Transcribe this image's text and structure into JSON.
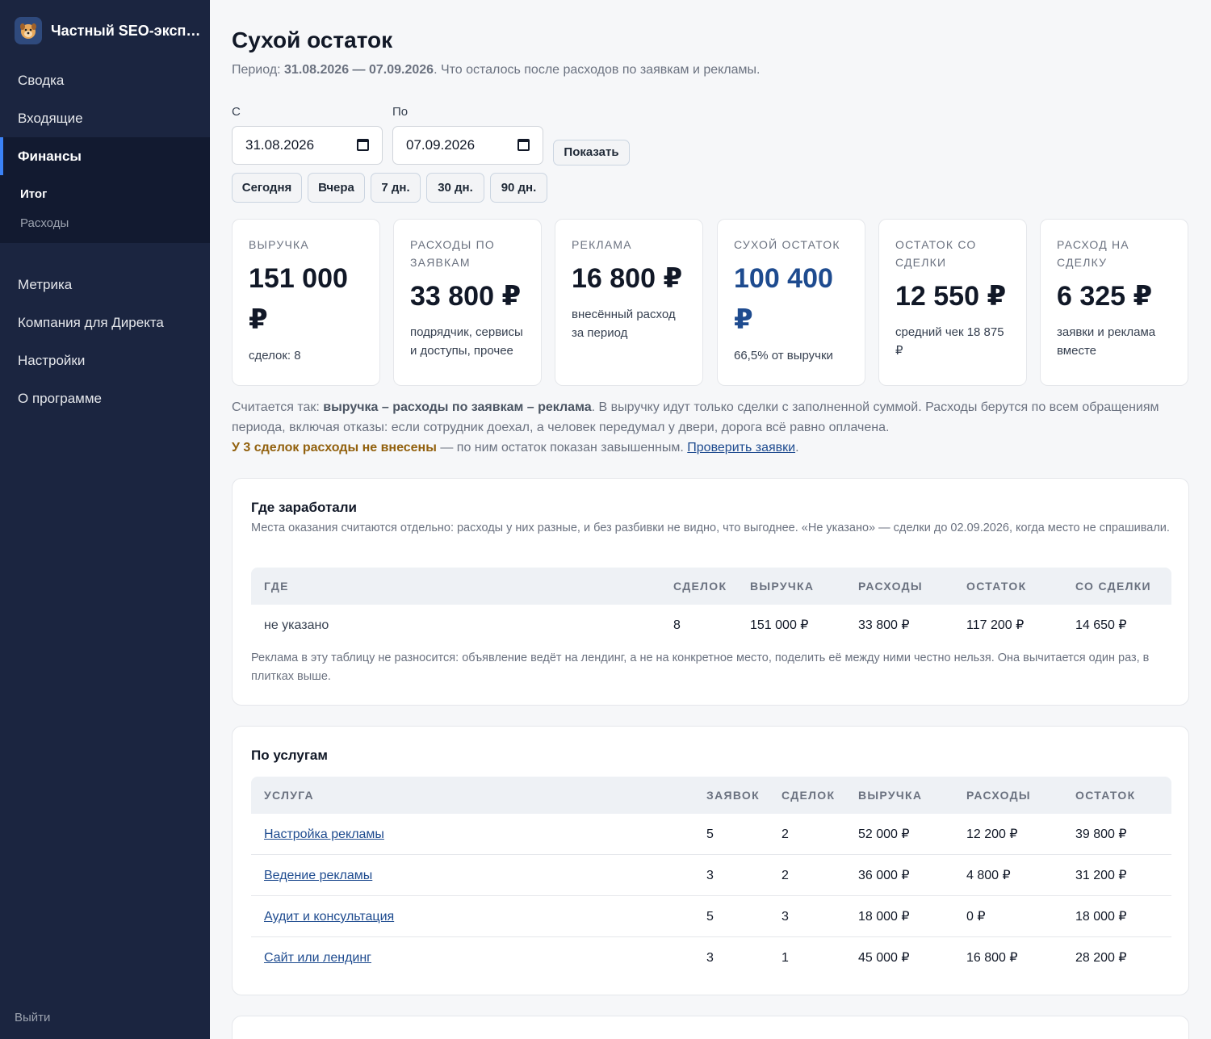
{
  "app": {
    "title": "Частный SEO-эксперт"
  },
  "sidebar": {
    "items": [
      {
        "label": "Сводка"
      },
      {
        "label": "Входящие"
      },
      {
        "label": "Финансы"
      }
    ],
    "subitems": [
      {
        "label": "Итог"
      },
      {
        "label": "Расходы"
      }
    ],
    "items2": [
      {
        "label": "Метрика"
      },
      {
        "label": "Компания для Директа"
      },
      {
        "label": "Настройки"
      },
      {
        "label": "О программе"
      }
    ],
    "logout": "Выйти"
  },
  "page": {
    "title": "Сухой остаток",
    "subtitle_prefix": "Период: ",
    "subtitle_period": "31.08.2026 — 07.09.2026",
    "subtitle_suffix": ". Что осталось после расходов по заявкам и рекламы."
  },
  "filters": {
    "from_label": "С",
    "from_value": "31.08.2026",
    "to_label": "По",
    "to_value": "07.09.2026",
    "show_button": "Показать",
    "presets": [
      "Сегодня",
      "Вчера",
      "7 дн.",
      "30 дн.",
      "90 дн."
    ]
  },
  "kpis": [
    {
      "label": "Выручка",
      "value": "151 000 ₽",
      "note": "сделок: 8"
    },
    {
      "label": "Расходы по заявкам",
      "value": "33 800 ₽",
      "note": "подрядчик, сервисы и доступы, прочее"
    },
    {
      "label": "Реклама",
      "value": "16 800 ₽",
      "note": "внесённый расход за период"
    },
    {
      "label": "Сухой остаток",
      "value": "100 400 ₽",
      "note": "66,5% от выручки"
    },
    {
      "label": "Остаток со сделки",
      "value": "12 550 ₽",
      "note": "средний чек 18 875 ₽"
    },
    {
      "label": "Расход на сделку",
      "value": "6 325 ₽",
      "note": "заявки и реклама вместе"
    }
  ],
  "explain": {
    "p1_a": "Считается так: ",
    "p1_formula": "выручка – расходы по заявкам – реклама",
    "p1_b": ". В выручку идут только сделки с заполненной суммой. Расходы берутся по всем обращениям периода, включая отказы: если сотрудник доехал, а человек передумал у двери, дорога всё равно оплачена.",
    "warn": "У 3 сделок расходы не внесены",
    "p2": " — по ним остаток показан завышенным. ",
    "link": "Проверить заявки",
    "dot": "."
  },
  "where": {
    "title": "Где заработали",
    "desc": "Места оказания считаются отдельно: расходы у них разные, и без разбивки не видно, что выгоднее. «Не указано» — сделки до 02.09.2026, когда место не спрашивали.",
    "headers": [
      "Где",
      "Сделок",
      "Выручка",
      "Расходы",
      "Остаток",
      "Со сделки"
    ],
    "rows": [
      [
        "не указано",
        "8",
        "151 000 ₽",
        "33 800 ₽",
        "117 200 ₽",
        "14 650 ₽"
      ]
    ],
    "footnote": "Реклама в эту таблицу не разносится: объявление ведёт на лендинг, а не на конкретное место, поделить её между ними честно нельзя. Она вычитается один раз, в плитках выше."
  },
  "services": {
    "title": "По услугам",
    "headers": [
      "Услуга",
      "Заявок",
      "Сделок",
      "Выручка",
      "Расходы",
      "Остаток"
    ],
    "rows": [
      [
        "Настройка рекламы",
        "5",
        "2",
        "52 000 ₽",
        "12 200 ₽",
        "39 800 ₽"
      ],
      [
        "Ведение рекламы",
        "3",
        "2",
        "36 000 ₽",
        "4 800 ₽",
        "31 200 ₽"
      ],
      [
        "Аудит и консультация",
        "5",
        "3",
        "18 000 ₽",
        "0 ₽",
        "18 000 ₽"
      ],
      [
        "Сайт или лендинг",
        "3",
        "1",
        "45 000 ₽",
        "16 800 ₽",
        "28 200 ₽"
      ]
    ]
  }
}
